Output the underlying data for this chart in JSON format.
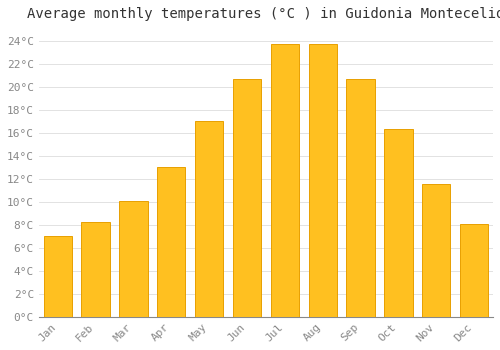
{
  "title": "Average monthly temperatures (°C ) in Guidonia Montecelio",
  "months": [
    "Jan",
    "Feb",
    "Mar",
    "Apr",
    "May",
    "Jun",
    "Jul",
    "Aug",
    "Sep",
    "Oct",
    "Nov",
    "Dec"
  ],
  "values": [
    7.0,
    8.2,
    10.1,
    13.0,
    17.0,
    20.7,
    23.7,
    23.7,
    20.7,
    16.3,
    11.5,
    8.1
  ],
  "bar_color": "#FFC020",
  "bar_edge_color": "#E8A000",
  "background_color": "#FFFFFF",
  "grid_color": "#DDDDDD",
  "ylim": [
    0,
    25
  ],
  "ytick_step": 2,
  "title_fontsize": 10,
  "tick_fontsize": 8,
  "tick_label_color": "#888888",
  "title_color": "#333333"
}
